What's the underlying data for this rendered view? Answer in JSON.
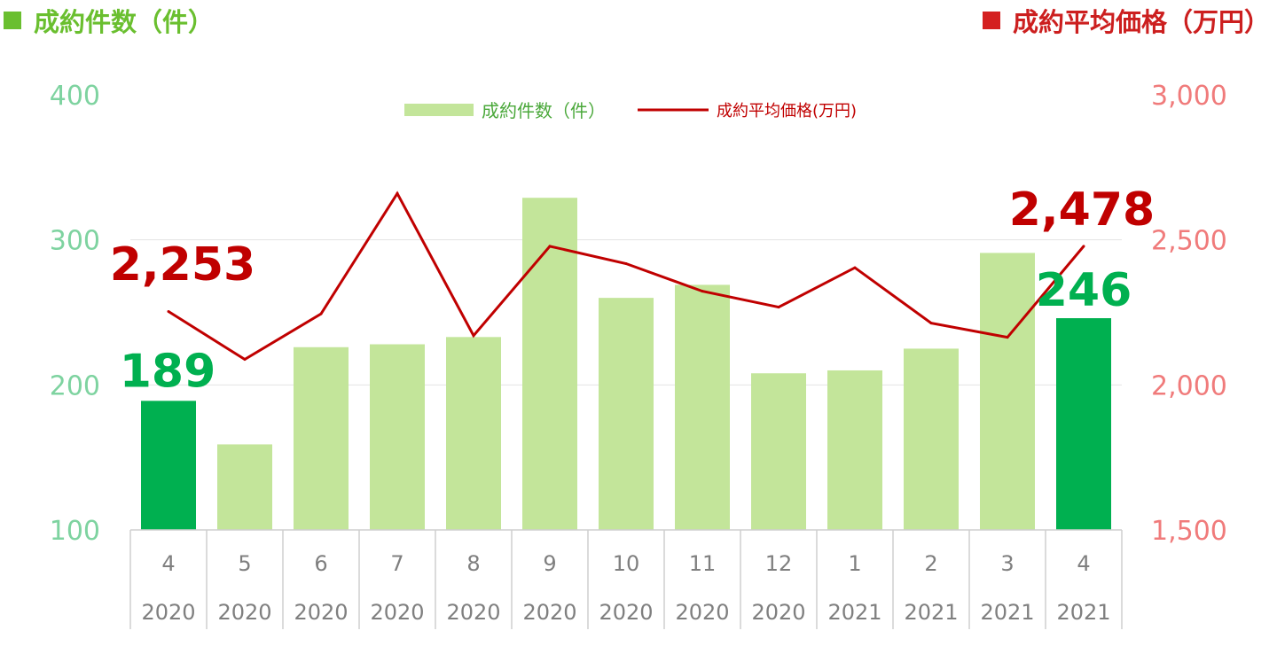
{
  "header": {
    "left_title": "成約件数（件）",
    "right_title": "成約平均価格（万円）",
    "left_color": "#6abf2f",
    "right_color": "#d42020"
  },
  "chart_data": {
    "type": "bar",
    "categories": [
      {
        "month": "4",
        "year": "2020"
      },
      {
        "month": "5",
        "year": "2020"
      },
      {
        "month": "6",
        "year": "2020"
      },
      {
        "month": "7",
        "year": "2020"
      },
      {
        "month": "8",
        "year": "2020"
      },
      {
        "month": "9",
        "year": "2020"
      },
      {
        "month": "10",
        "year": "2020"
      },
      {
        "month": "11",
        "year": "2020"
      },
      {
        "month": "12",
        "year": "2020"
      },
      {
        "month": "1",
        "year": "2021"
      },
      {
        "month": "2",
        "year": "2021"
      },
      {
        "month": "3",
        "year": "2021"
      },
      {
        "month": "4",
        "year": "2021"
      }
    ],
    "series": [
      {
        "name": "成約件数（件）",
        "type": "bar",
        "axis": "left",
        "values": [
          189,
          159,
          226,
          228,
          233,
          329,
          260,
          269,
          208,
          210,
          225,
          291,
          246
        ],
        "color": "#c3e59a",
        "highlight_color": "#00b050",
        "highlight_indices": [
          0,
          12
        ]
      },
      {
        "name": "成約平均価格(万円)",
        "type": "line",
        "axis": "right",
        "values": [
          2253,
          2088,
          2245,
          2660,
          2170,
          2478,
          2418,
          2323,
          2268,
          2404,
          2213,
          2164,
          2478
        ],
        "color": "#c00000"
      }
    ],
    "annotations": [
      {
        "text": "189",
        "series": 0,
        "index": 0,
        "color": "#00b050"
      },
      {
        "text": "246",
        "series": 0,
        "index": 12,
        "color": "#00b050"
      },
      {
        "text": "2,253",
        "series": 1,
        "index": 0,
        "color": "#c00000"
      },
      {
        "text": "2,478",
        "series": 1,
        "index": 12,
        "color": "#c00000"
      }
    ],
    "y_left": {
      "min": 100,
      "max": 400,
      "ticks": [
        "100",
        "200",
        "300",
        "400"
      ],
      "color": "#7ed3a0"
    },
    "y_right": {
      "min": 1500,
      "max": 3000,
      "ticks": [
        "1,500",
        "2,000",
        "2,500",
        "3,000"
      ],
      "color": "#f07b7b"
    },
    "grid": true,
    "legend_position": "top-center"
  }
}
